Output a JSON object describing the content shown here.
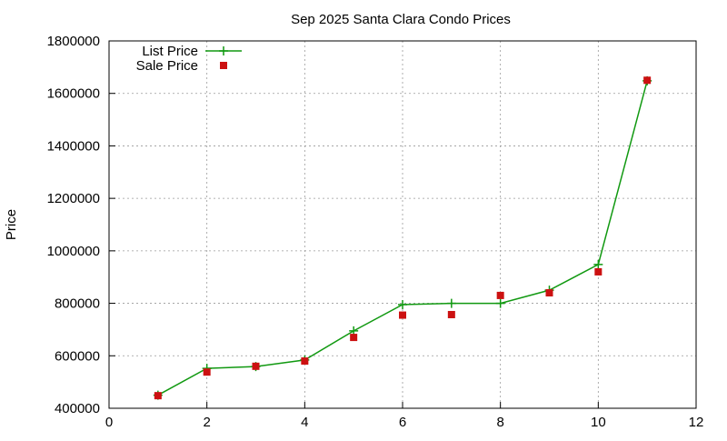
{
  "chart_data": {
    "type": "line",
    "title": "Sep 2025 Santa Clara Condo Prices",
    "y_label": "Price",
    "x": [
      1,
      2,
      3,
      4,
      5,
      6,
      7,
      8,
      9,
      10,
      11
    ],
    "series": [
      {
        "name": "List Price",
        "color": "#119911",
        "marker": "plus",
        "line": true,
        "values": [
          450000,
          552000,
          559000,
          584000,
          695000,
          795000,
          800000,
          800000,
          850000,
          948000,
          1648000
        ]
      },
      {
        "name": "Sale Price",
        "color": "#cc1111",
        "marker": "square",
        "line": false,
        "values": [
          448000,
          538000,
          560000,
          580000,
          670000,
          755000,
          757000,
          830000,
          840000,
          920000,
          1650000
        ]
      }
    ],
    "xlim": [
      0,
      12
    ],
    "xticks": [
      0,
      2,
      4,
      6,
      8,
      10,
      12
    ],
    "ylim": [
      400000,
      1800000
    ],
    "yticks": [
      400000,
      600000,
      800000,
      1000000,
      1200000,
      1400000,
      1600000,
      1800000
    ],
    "grid": true,
    "legend": "top-left"
  }
}
